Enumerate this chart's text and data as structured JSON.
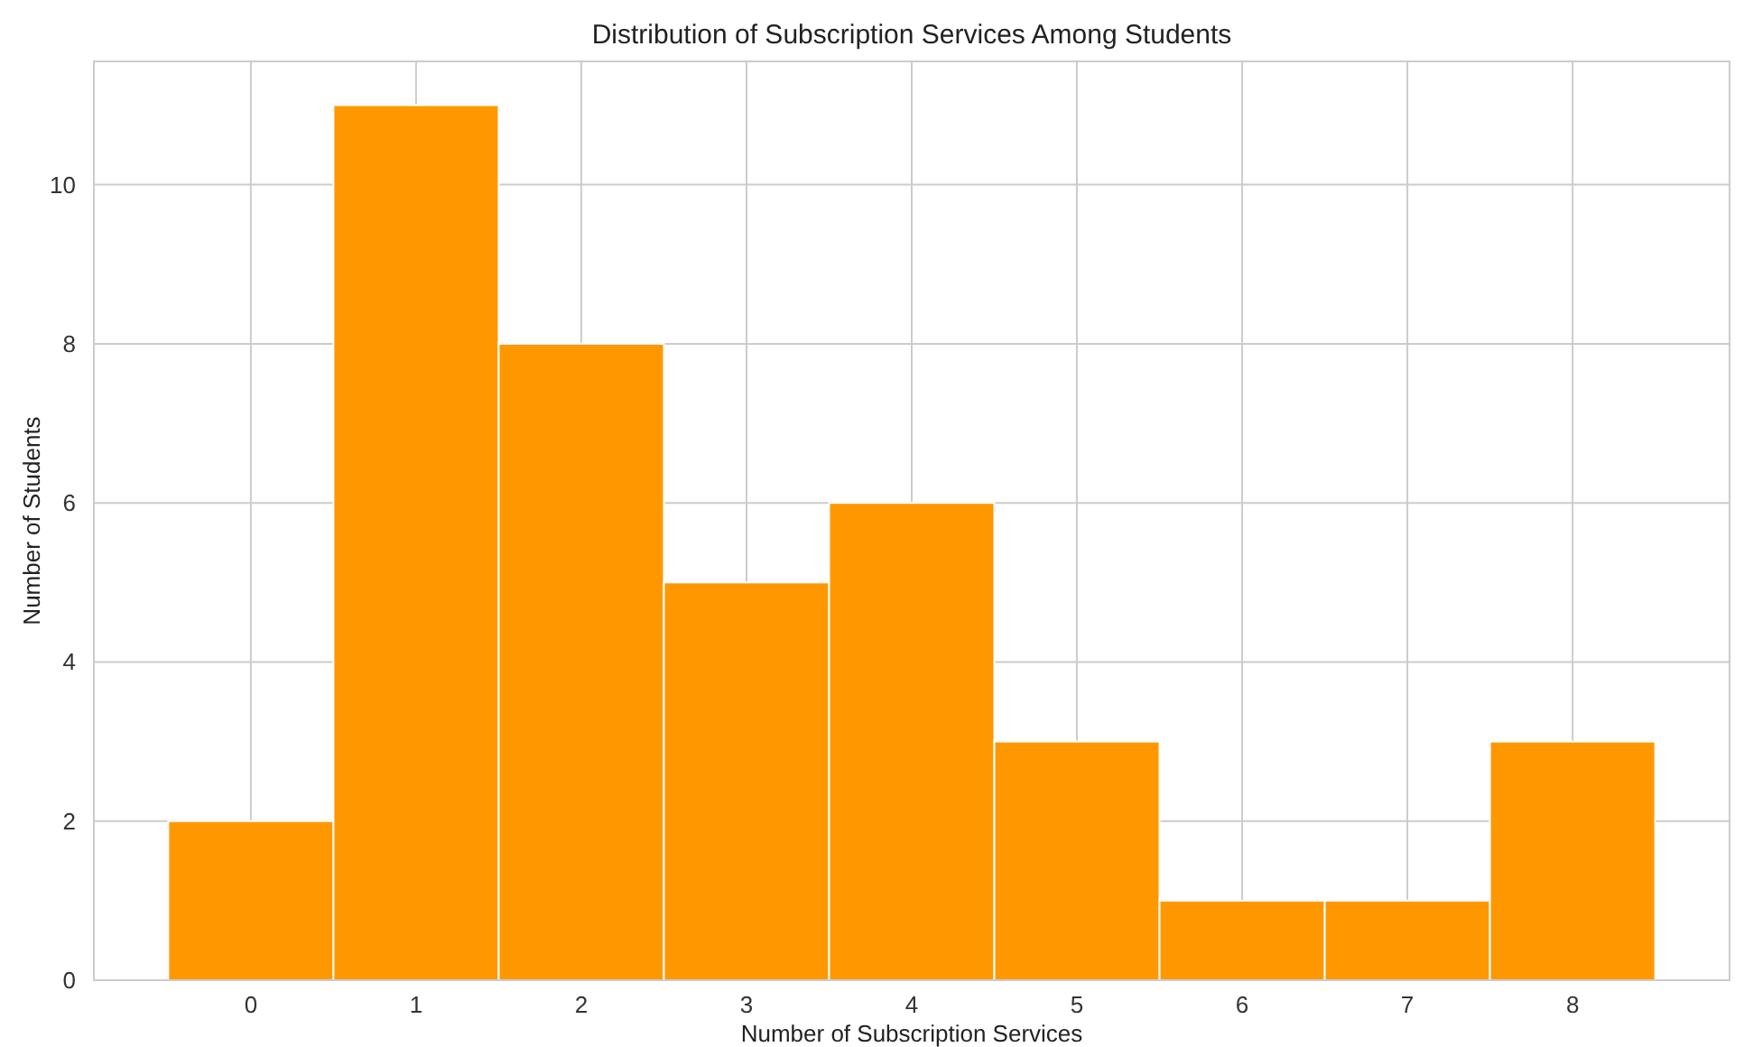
{
  "chart_data": {
    "type": "histogram",
    "title": "Distribution of Subscription Services Among Students",
    "xlabel": "Number of Subscription Services",
    "ylabel": "Number of Students",
    "bins": [
      -0.5,
      0.5,
      1.5,
      2.5,
      3.5,
      4.5,
      5.5,
      6.5,
      7.5,
      8.5
    ],
    "values": [
      2,
      11,
      8,
      5,
      6,
      3,
      1,
      1,
      3
    ],
    "color": "#ff9800",
    "xlim": [
      -0.95,
      8.95
    ],
    "xticks": [
      0,
      1,
      2,
      3,
      4,
      5,
      6,
      7,
      8
    ],
    "ylim": [
      0,
      11.55
    ],
    "yticks": [
      0,
      2,
      4,
      6,
      8,
      10
    ],
    "grid": true
  }
}
